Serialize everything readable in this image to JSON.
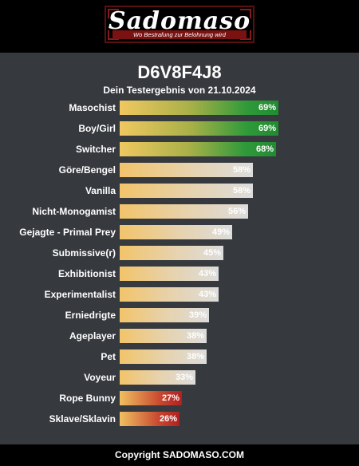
{
  "header": {
    "logo_text": "Sadomaso",
    "logo_tagline": "Wo Bestrafung zur Belohnung wird"
  },
  "result": {
    "code": "D6V8F4J8",
    "subtitle": "Dein Testergebnis von 21.10.2024"
  },
  "chart_data": {
    "type": "bar",
    "orientation": "horizontal",
    "categories": [
      "Masochist",
      "Boy/Girl",
      "Switcher",
      "Göre/Bengel",
      "Vanilla",
      "Nicht-Monogamist",
      "Gejagte - Primal Prey",
      "Submissive(r)",
      "Exhibitionist",
      "Experimentalist",
      "Erniedrigte",
      "Ageplayer",
      "Pet",
      "Voyeur",
      "Rope Bunny",
      "Sklave/Sklavin"
    ],
    "values": [
      69,
      69,
      68,
      58,
      58,
      56,
      49,
      45,
      43,
      43,
      39,
      38,
      38,
      33,
      27,
      26
    ],
    "value_labels": [
      "69%",
      "69%",
      "68%",
      "58%",
      "58%",
      "56%",
      "49%",
      "45%",
      "43%",
      "43%",
      "39%",
      "38%",
      "38%",
      "33%",
      "27%",
      "26%"
    ],
    "xlim": [
      0,
      100
    ],
    "colors": {
      "high": "#228b32",
      "mid": "#dcdcdc",
      "low": "#b02020",
      "start": "#f2c46a"
    }
  },
  "footer": {
    "copyright": "Copyright SADOMASO.COM"
  }
}
